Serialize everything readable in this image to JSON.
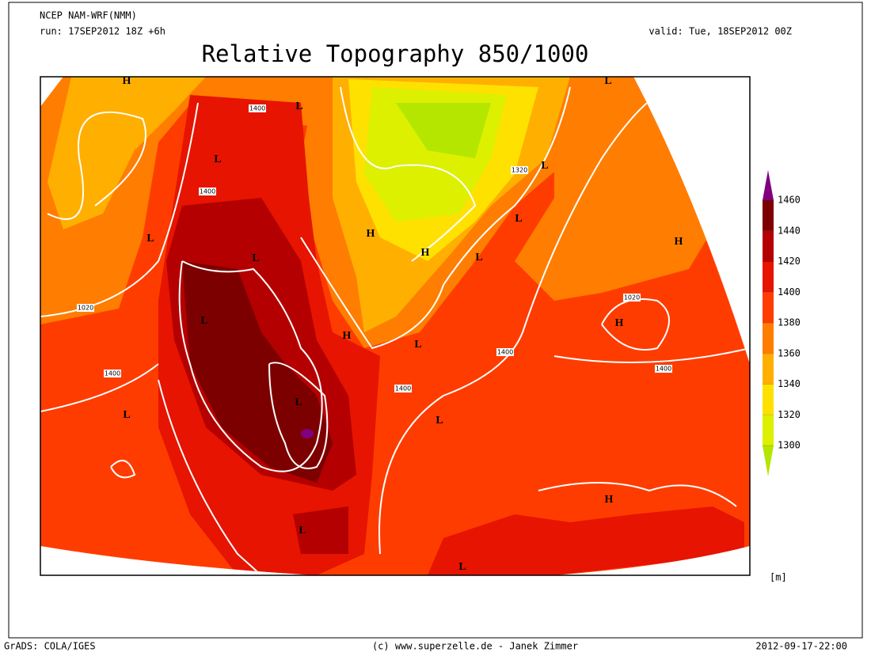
{
  "header": {
    "model": "NCEP NAM-WRF(NMM)",
    "run": "run: 17SEP2012 18Z +6h",
    "valid": "valid: Tue, 18SEP2012 00Z",
    "title": "Relative Topography 850/1000"
  },
  "map": {
    "pressure_centers": [
      "H",
      "L",
      "L",
      "L",
      "L",
      "L",
      "H",
      "L",
      "H",
      "H",
      "L",
      "L",
      "L",
      "H",
      "H",
      "L",
      "L",
      "L",
      "L",
      "H",
      "L",
      "L"
    ],
    "contour_labels": [
      "1400",
      "1320",
      "1400",
      "1020",
      "1020",
      "1400",
      "1400",
      "1400",
      "1400"
    ]
  },
  "colorbar": {
    "levels": [
      1300,
      1320,
      1340,
      1360,
      1380,
      1400,
      1420,
      1440,
      1460
    ],
    "colors": [
      "#b4e600",
      "#dcf000",
      "#ffe100",
      "#ffaf00",
      "#ff7d00",
      "#ff3c00",
      "#e61400",
      "#b40000",
      "#7d0000",
      "#800080"
    ],
    "unit": "[m]"
  },
  "footer": {
    "software": "GrADS: COLA/IGES",
    "credit": "(c) www.superzelle.de - Janek Zimmer",
    "timestamp": "2012-09-17-22:00"
  }
}
